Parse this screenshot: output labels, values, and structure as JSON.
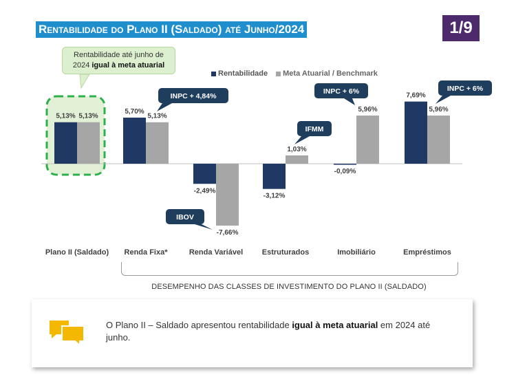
{
  "header": {
    "title": "Rentabilidade do Plano II (Saldado) até Junho/2024",
    "page_indicator": "1/9"
  },
  "callout": {
    "line1": "Rentabilidade até junho de",
    "line2_prefix": "2024 ",
    "line2_bold": "igual à meta atuarial"
  },
  "colors": {
    "rentabilidade": "#1f3864",
    "meta": "#a6a6a6",
    "title_bg": "#1f8ecd",
    "badge_bg": "#4d2a6b",
    "callout_tag": "#1f3d5c",
    "highlight_green": "#2db04b"
  },
  "chart_data": {
    "type": "bar",
    "categories": [
      "Plano II (Saldado)",
      "Renda Fixa*",
      "Renda Variável",
      "Estruturados",
      "Imobiliário",
      "Empréstimos"
    ],
    "series": [
      {
        "name": "Rentabilidade",
        "values": [
          5.13,
          5.7,
          -2.49,
          -3.12,
          -0.09,
          7.69
        ],
        "labels": [
          "5,13%",
          "5,70%",
          "-2,49%",
          "-3,12%",
          "-0,09%",
          "7,69%"
        ]
      },
      {
        "name": "Meta Atuarial / Benchmark",
        "values": [
          5.13,
          5.13,
          -7.66,
          1.03,
          5.96,
          5.96
        ],
        "labels": [
          "5,13%",
          "5,13%",
          "-7,66%",
          "1,03%",
          "5,96%",
          "5,96%"
        ]
      }
    ],
    "benchmark_tags": [
      "",
      "INPC + 4,84%",
      "IBOV",
      "IFMM",
      "INPC + 6%",
      "INPC + 6%"
    ],
    "legend_position": "top",
    "grid": false,
    "xlabel": "DESEMPENHO DAS CLASSES DE INVESTIMENTO DO PLANO II (SALDADO)"
  },
  "summary": {
    "prefix": "O Plano II – Saldado apresentou rentabilidade ",
    "bold": "igual à meta atuarial",
    "suffix": " em 2024 até junho."
  }
}
